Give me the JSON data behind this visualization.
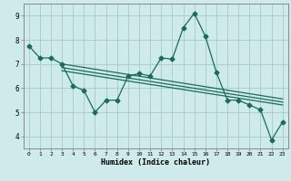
{
  "xlabel": "Humidex (Indice chaleur)",
  "bg_color": "#ceeaea",
  "grid_color": "#aacfcf",
  "line_color": "#1a6b5a",
  "xlim": [
    -0.5,
    23.5
  ],
  "ylim": [
    3.5,
    9.5
  ],
  "xticks": [
    0,
    1,
    2,
    3,
    4,
    5,
    6,
    7,
    8,
    9,
    10,
    11,
    12,
    13,
    14,
    15,
    16,
    17,
    18,
    19,
    20,
    21,
    22,
    23
  ],
  "yticks": [
    4,
    5,
    6,
    7,
    8,
    9
  ],
  "scatter_x": [
    0,
    1,
    2,
    3,
    4,
    5,
    6,
    7,
    8,
    9,
    10,
    11,
    12,
    13,
    14,
    15,
    16,
    17,
    18,
    19,
    20,
    21,
    22,
    23
  ],
  "scatter_y": [
    7.75,
    7.25,
    7.25,
    7.0,
    6.1,
    5.9,
    5.0,
    5.5,
    5.5,
    6.5,
    6.6,
    6.5,
    7.25,
    7.2,
    8.5,
    9.1,
    8.15,
    6.65,
    5.5,
    5.5,
    5.3,
    5.1,
    3.85,
    4.6
  ],
  "trend_lines": [
    {
      "x": [
        3,
        23
      ],
      "y": [
        7.0,
        5.55
      ]
    },
    {
      "x": [
        3,
        23
      ],
      "y": [
        6.85,
        5.42
      ]
    },
    {
      "x": [
        3,
        23
      ],
      "y": [
        6.72,
        5.3
      ]
    }
  ],
  "marker": "D",
  "markersize": 2.5,
  "linewidth": 0.9
}
